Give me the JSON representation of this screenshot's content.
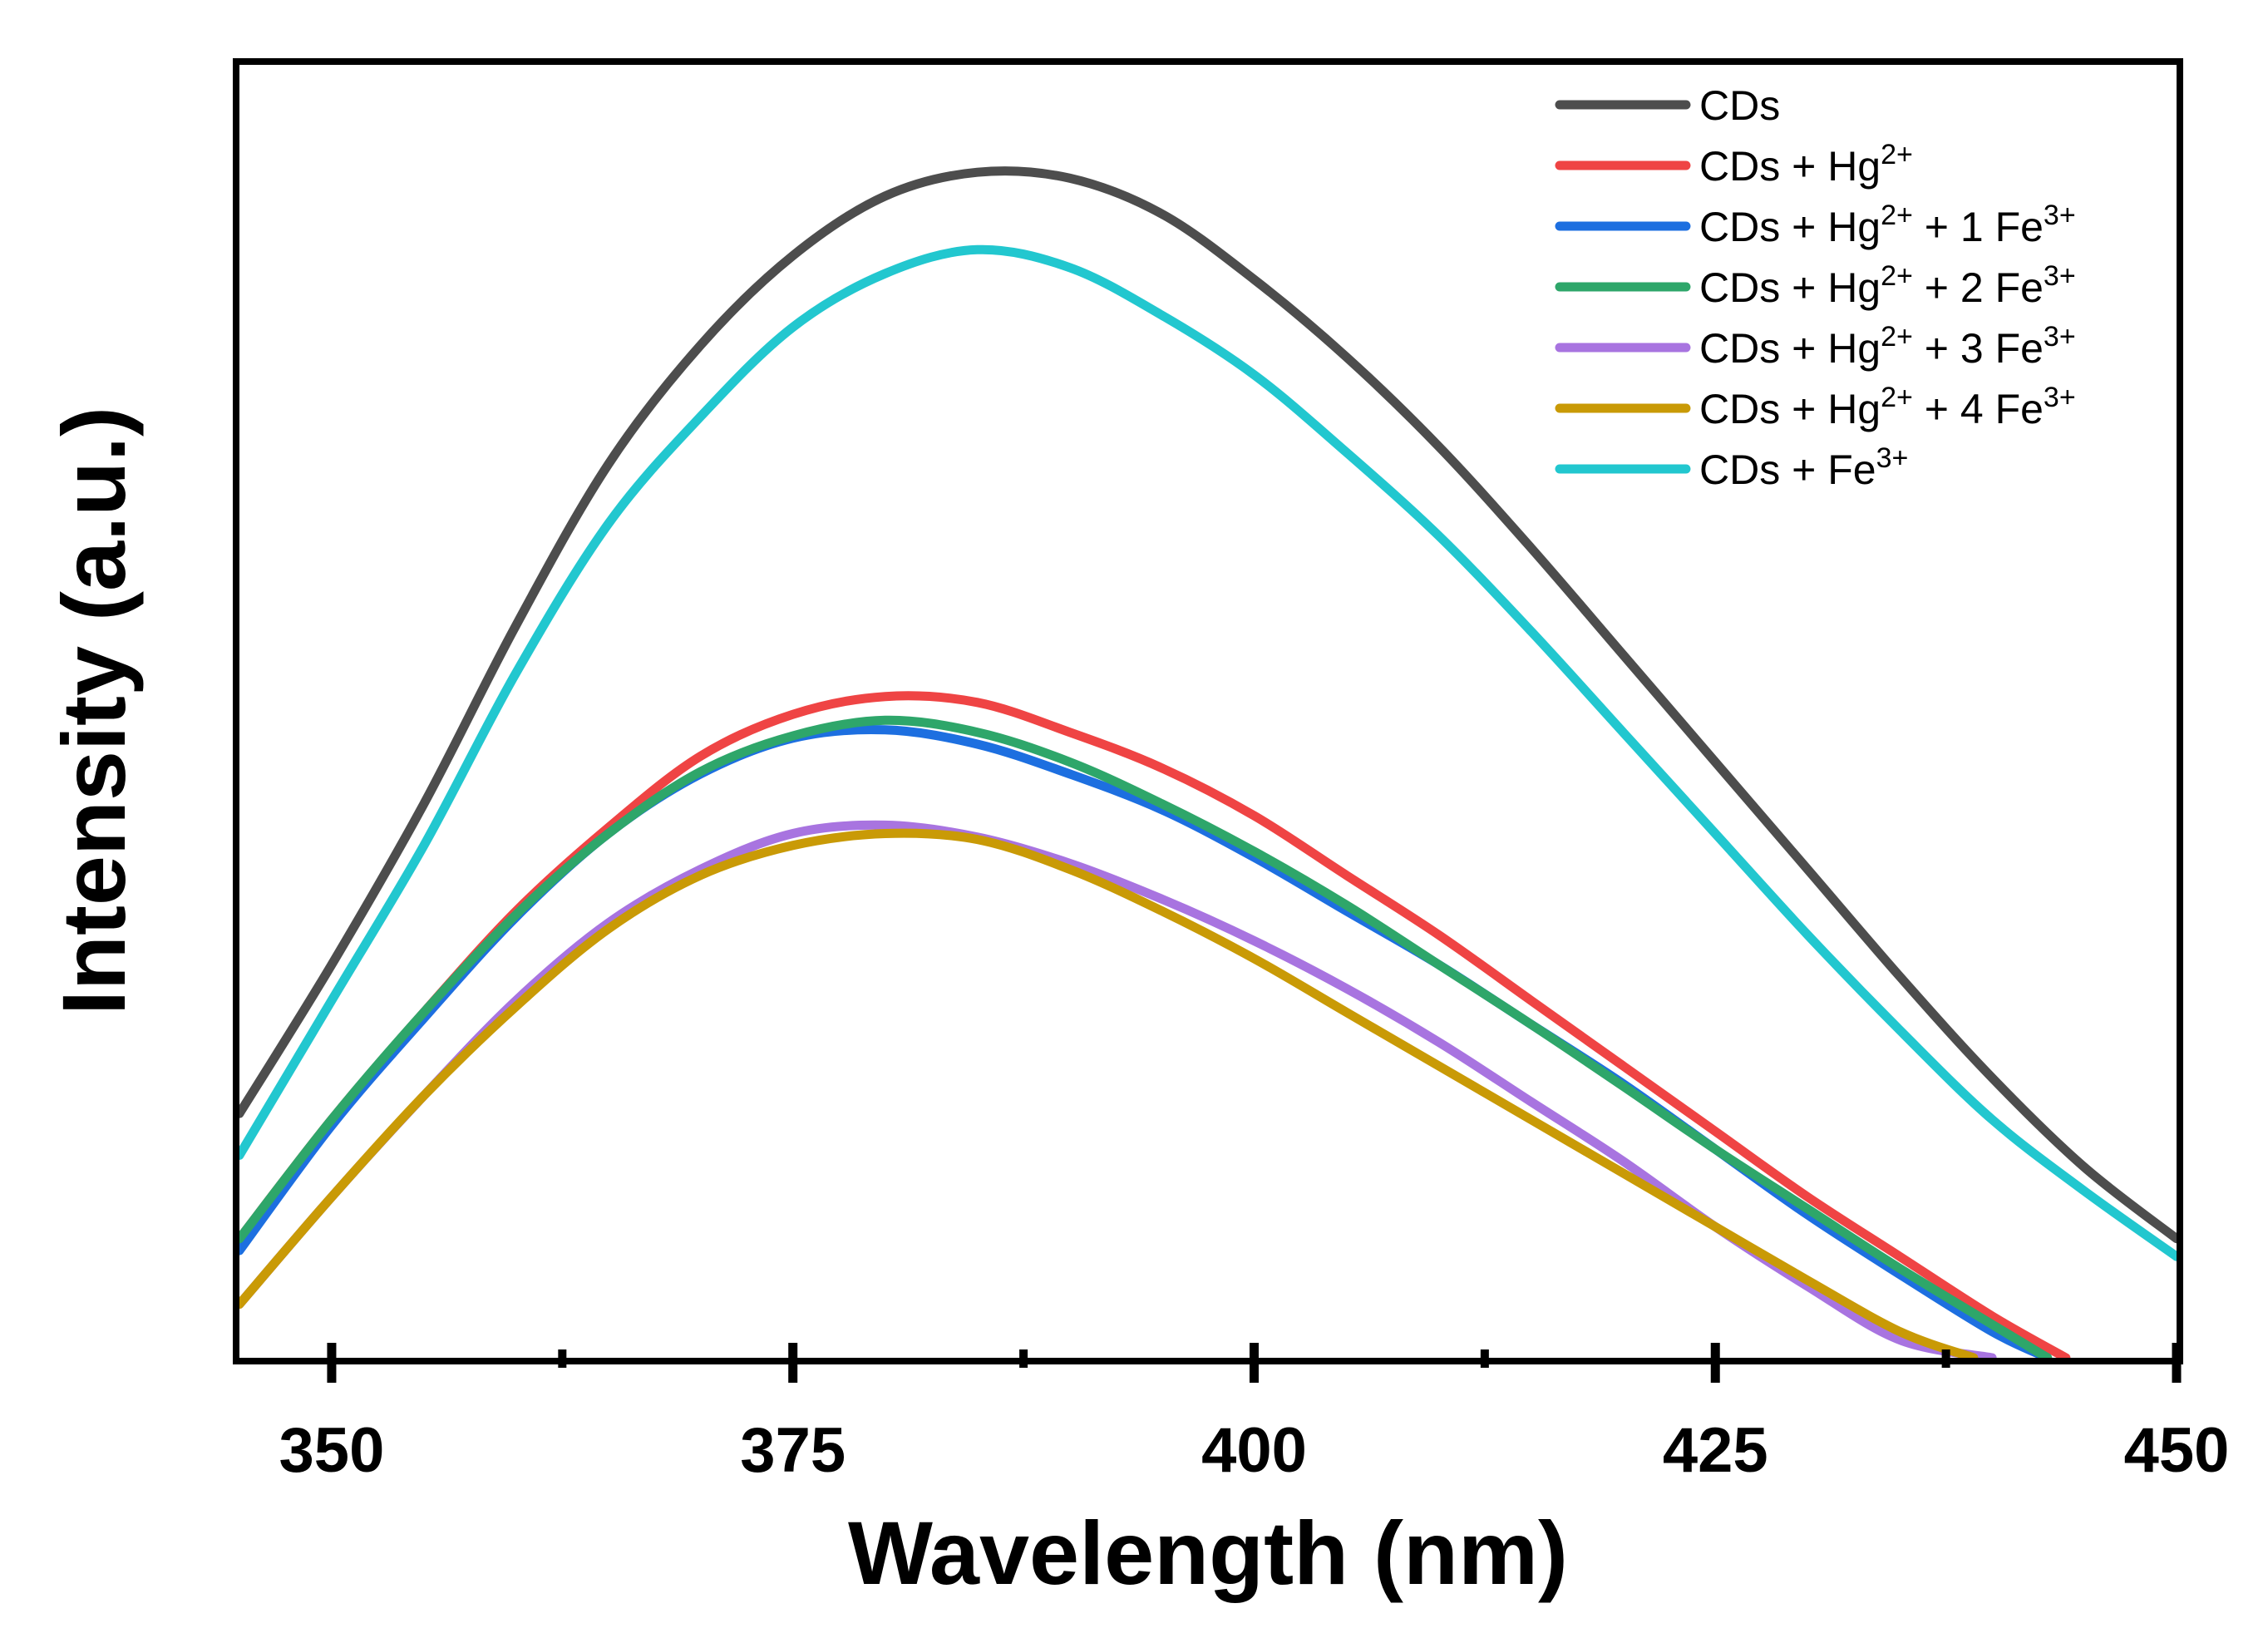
{
  "chart_data": {
    "type": "line",
    "title": "",
    "xlabel": "Wavelength (nm)",
    "ylabel": "Intensity (a.u.)",
    "xlim": [
      345,
      450
    ],
    "ylim": [
      0,
      1.0
    ],
    "xticks": [
      350,
      375,
      400,
      425,
      450
    ],
    "xticks_minor": [
      362.5,
      387.5,
      412.5,
      437.5
    ],
    "yticks_visible": false,
    "grid": false,
    "legend_position": "top-right",
    "series": [
      {
        "name": "CDs",
        "legend_main": "CDs",
        "legend_sup": "",
        "legend_tail": "",
        "legend_tail_sup": "",
        "color": "#4d4d4d",
        "x": [
          345,
          350,
          355,
          360,
          365,
          370,
          375,
          380,
          385,
          390,
          395,
          400,
          405,
          410,
          415,
          420,
          425,
          430,
          435,
          440,
          445,
          450
        ],
        "y": [
          0.205,
          0.33,
          0.465,
          0.615,
          0.75,
          0.85,
          0.925,
          0.975,
          0.995,
          0.99,
          0.96,
          0.905,
          0.84,
          0.765,
          0.68,
          0.59,
          0.5,
          0.41,
          0.32,
          0.235,
          0.16,
          0.1
        ]
      },
      {
        "name": "CDs + Hg2+",
        "legend_main": "CDs + Hg",
        "legend_sup": "2+",
        "legend_tail": "",
        "legend_tail_sup": "",
        "color": "#ef4444",
        "x": [
          345,
          350,
          355,
          360,
          365,
          370,
          375,
          380,
          385,
          390,
          395,
          400,
          405,
          410,
          415,
          420,
          425,
          430,
          435,
          440,
          444
        ],
        "y": [
          0.1,
          0.2,
          0.29,
          0.375,
          0.445,
          0.505,
          0.54,
          0.555,
          0.55,
          0.525,
          0.495,
          0.455,
          0.405,
          0.355,
          0.3,
          0.245,
          0.19,
          0.135,
          0.085,
          0.035,
          0.0
        ]
      },
      {
        "name": "CDs + Hg2+ + 1 Fe3+",
        "legend_main": "CDs + Hg",
        "legend_sup": "2+",
        "legend_tail": " + 1 Fe",
        "legend_tail_sup": "3+",
        "color": "#1d6fe0",
        "x": [
          345,
          350,
          355,
          360,
          365,
          370,
          375,
          380,
          385,
          390,
          395,
          400,
          405,
          410,
          415,
          420,
          425,
          430,
          435,
          440,
          443
        ],
        "y": [
          0.09,
          0.195,
          0.285,
          0.37,
          0.44,
          0.49,
          0.52,
          0.527,
          0.515,
          0.49,
          0.46,
          0.42,
          0.375,
          0.33,
          0.28,
          0.23,
          0.175,
          0.12,
          0.07,
          0.022,
          0.0
        ]
      },
      {
        "name": "CDs + Hg2+ + 2 Fe3+",
        "legend_main": "CDs + Hg",
        "legend_sup": "2+",
        "legend_tail": " + 2 Fe",
        "legend_tail_sup": "3+",
        "color": "#2ea66a",
        "x": [
          345,
          350,
          355,
          360,
          365,
          370,
          375,
          380,
          385,
          390,
          395,
          400,
          405,
          410,
          415,
          420,
          425,
          430,
          435,
          440,
          443
        ],
        "y": [
          0.1,
          0.2,
          0.29,
          0.372,
          0.44,
          0.492,
          0.522,
          0.535,
          0.525,
          0.5,
          0.465,
          0.425,
          0.38,
          0.33,
          0.28,
          0.228,
          0.175,
          0.125,
          0.075,
          0.028,
          0.0
        ]
      },
      {
        "name": "CDs + Hg2+ + 3 Fe3+",
        "legend_main": "CDs + Hg",
        "legend_sup": "2+",
        "legend_tail": " + 3 Fe",
        "legend_tail_sup": "3+",
        "color": "#a874e0",
        "x": [
          345,
          350,
          355,
          360,
          365,
          370,
          375,
          380,
          385,
          390,
          395,
          400,
          405,
          410,
          415,
          420,
          425,
          430,
          435,
          440
        ],
        "y": [
          0.045,
          0.135,
          0.22,
          0.3,
          0.365,
          0.41,
          0.44,
          0.447,
          0.437,
          0.415,
          0.385,
          0.35,
          0.31,
          0.265,
          0.215,
          0.165,
          0.11,
          0.06,
          0.015,
          0.0
        ]
      },
      {
        "name": "CDs + Hg2+ + 4 Fe3+",
        "legend_main": "CDs + Hg",
        "legend_sup": "2+",
        "legend_tail": " + 4 Fe",
        "legend_tail_sup": "3+",
        "color": "#c99a06",
        "x": [
          345,
          350,
          355,
          360,
          365,
          370,
          375,
          380,
          385,
          390,
          395,
          400,
          405,
          410,
          415,
          420,
          425,
          430,
          435,
          439
        ],
        "y": [
          0.045,
          0.135,
          0.22,
          0.295,
          0.36,
          0.405,
          0.43,
          0.44,
          0.435,
          0.41,
          0.375,
          0.335,
          0.29,
          0.245,
          0.2,
          0.155,
          0.11,
          0.065,
          0.022,
          0.0
        ]
      },
      {
        "name": "CDs + Fe3+",
        "legend_main": "CDs + Fe",
        "legend_sup": "3+",
        "legend_tail": "",
        "legend_tail_sup": "",
        "color": "#22c7cf",
        "x": [
          345,
          350,
          355,
          360,
          365,
          370,
          375,
          380,
          385,
          390,
          395,
          400,
          405,
          410,
          415,
          420,
          425,
          430,
          435,
          440,
          445,
          450
        ],
        "y": [
          0.17,
          0.3,
          0.43,
          0.575,
          0.7,
          0.79,
          0.865,
          0.91,
          0.93,
          0.915,
          0.875,
          0.825,
          0.76,
          0.69,
          0.61,
          0.525,
          0.44,
          0.355,
          0.275,
          0.2,
          0.14,
          0.085
        ]
      }
    ]
  }
}
